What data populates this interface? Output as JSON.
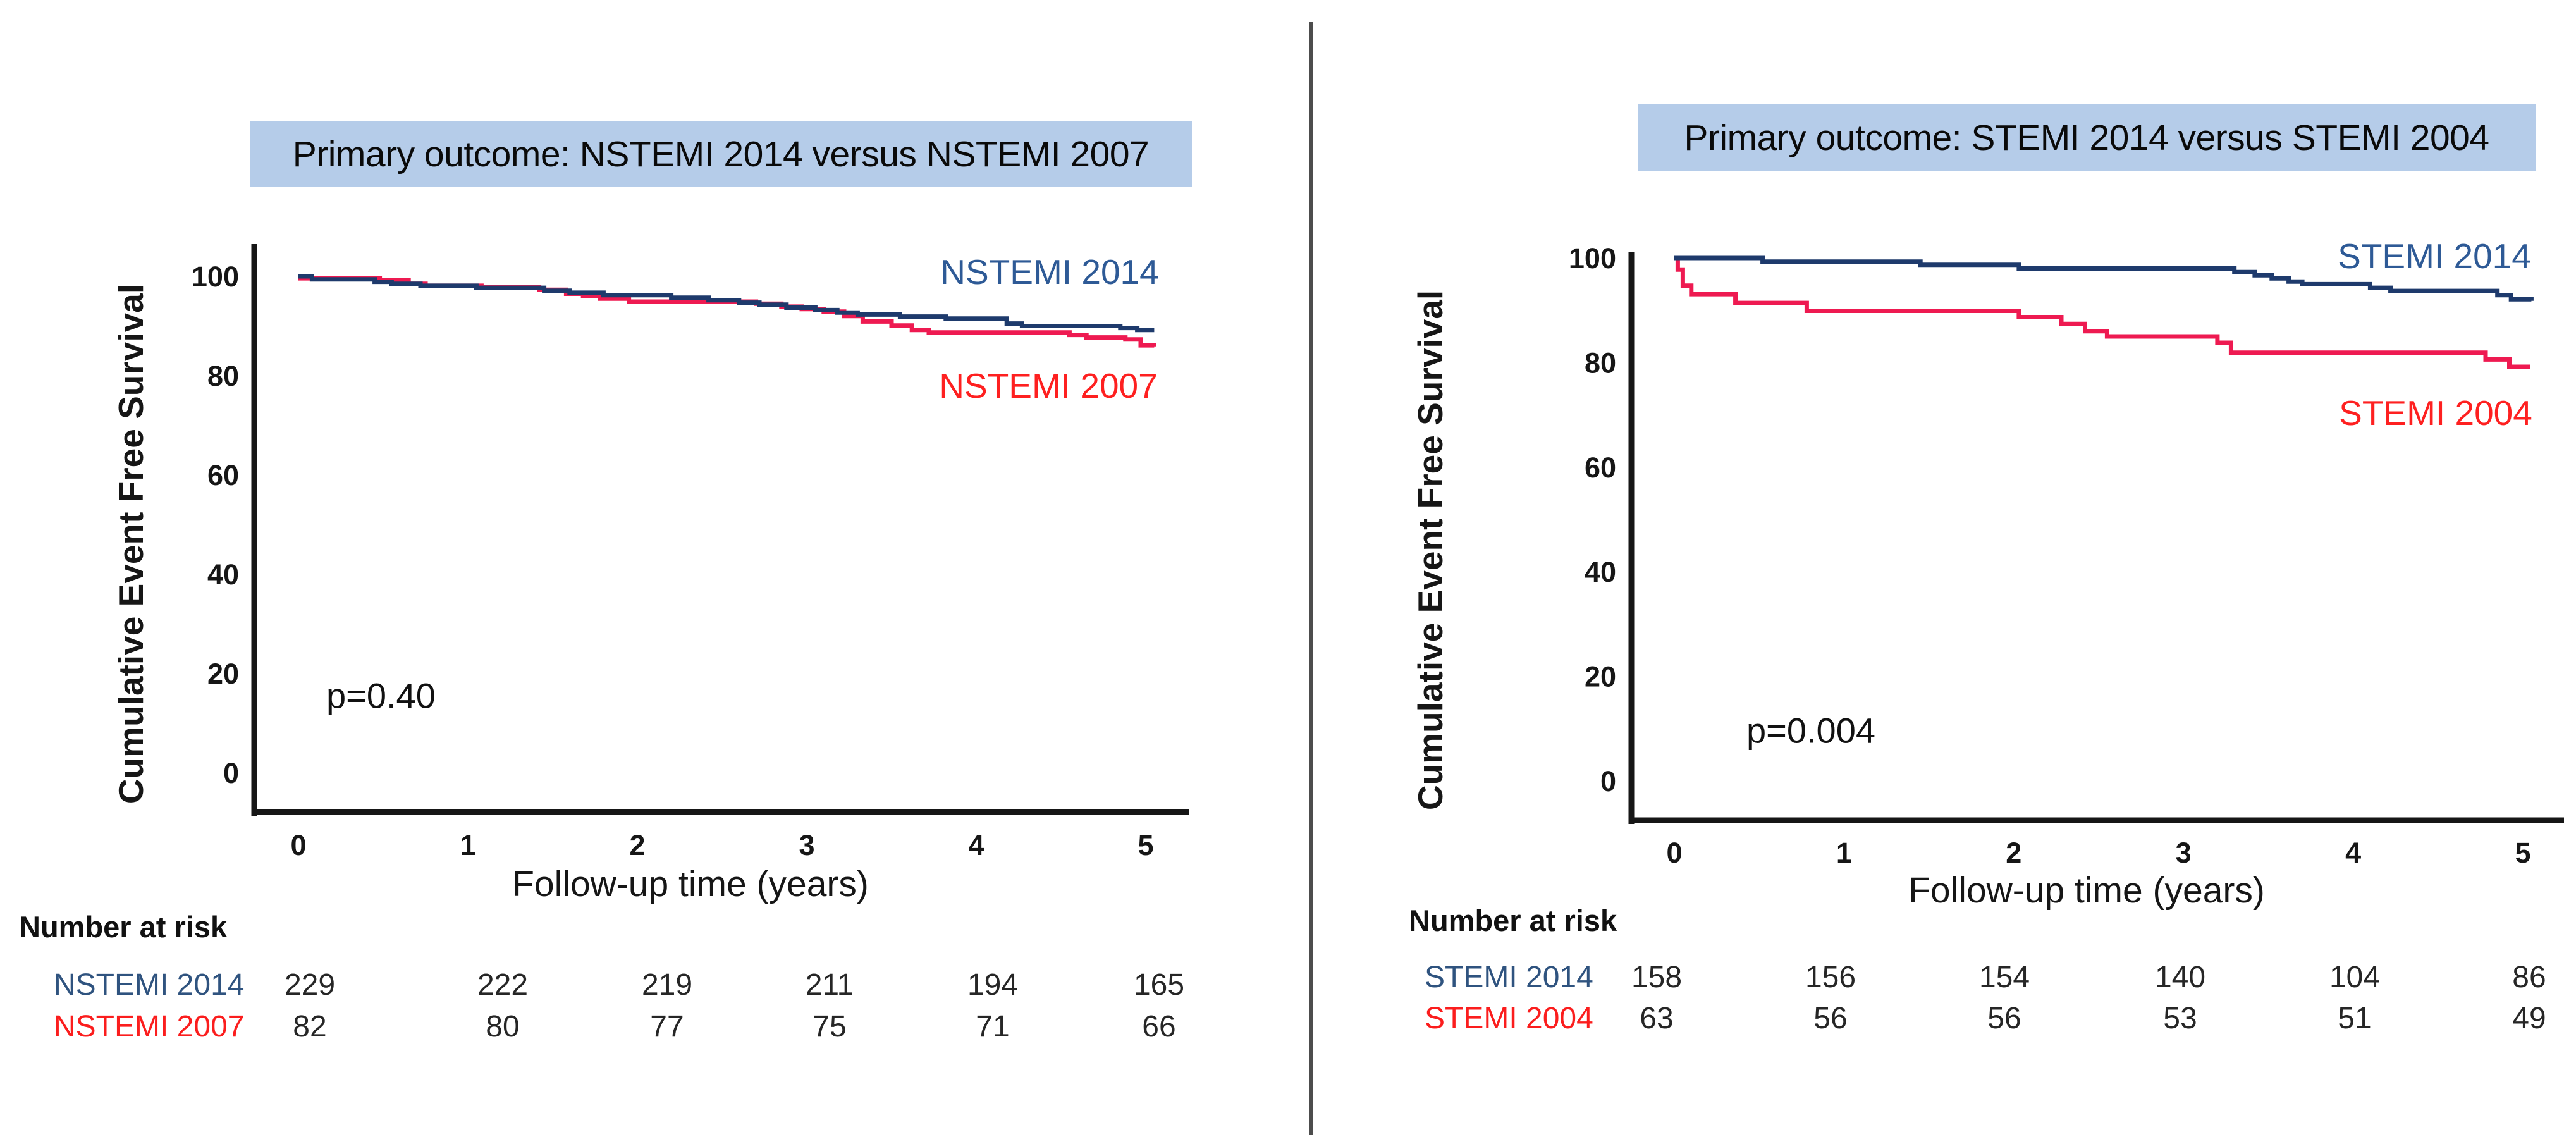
{
  "figure": {
    "divider_color": "#4d4d4d",
    "background": "#ffffff"
  },
  "chart_data": [
    {
      "type": "line",
      "subtype": "kaplan-meier-step",
      "title": "Primary outcome: NSTEMI 2014 versus NSTEMI 2007",
      "title_bg": "#b5cce9",
      "p_value": "p=0.40",
      "xlabel": "Follow-up time (years)",
      "ylabel": "Cumulative Event Free Survival",
      "x_ticks": [
        0,
        1,
        2,
        3,
        4,
        5
      ],
      "y_ticks": [
        100,
        80,
        60,
        40,
        20,
        0
      ],
      "xlim": [
        0,
        5.2
      ],
      "ylim": [
        0,
        107
      ],
      "grid": false,
      "legend_position": "inline-right",
      "series": [
        {
          "name": "NSTEMI 2014",
          "color": "#1e3a6c",
          "label_color": "#2e5a96",
          "label_pos": {
            "x": 4.42,
            "y": 100.8
          },
          "points": [
            [
              0,
              100
            ],
            [
              0.08,
              99.4
            ],
            [
              0.45,
              98.9
            ],
            [
              0.55,
              98.5
            ],
            [
              0.72,
              98.1
            ],
            [
              1.05,
              97.7
            ],
            [
              1.45,
              97.1
            ],
            [
              1.6,
              96.7
            ],
            [
              1.8,
              96.2
            ],
            [
              2.2,
              95.7
            ],
            [
              2.42,
              95.2
            ],
            [
              2.6,
              94.7
            ],
            [
              2.72,
              94.3
            ],
            [
              2.88,
              93.7
            ],
            [
              3.05,
              93.2
            ],
            [
              3.18,
              92.7
            ],
            [
              3.3,
              92.3
            ],
            [
              3.55,
              91.9
            ],
            [
              3.82,
              91.5
            ],
            [
              4.18,
              90.5
            ],
            [
              4.27,
              90.0
            ],
            [
              4.85,
              89.6
            ],
            [
              4.95,
              89.2
            ],
            [
              5.05,
              89.2
            ]
          ]
        },
        {
          "name": "NSTEMI 2007",
          "color": "#ee1a51",
          "label_color": "#fe2020",
          "label_pos": {
            "x": 4.42,
            "y": 78.0
          },
          "points": [
            [
              0,
              99.6
            ],
            [
              0.48,
              99.2
            ],
            [
              0.65,
              98.5
            ],
            [
              0.75,
              98.1
            ],
            [
              1.08,
              97.9
            ],
            [
              1.42,
              97.3
            ],
            [
              1.58,
              96.5
            ],
            [
              1.68,
              96.0
            ],
            [
              1.78,
              95.5
            ],
            [
              1.95,
              94.9
            ],
            [
              2.7,
              94.5
            ],
            [
              2.85,
              93.9
            ],
            [
              2.97,
              93.4
            ],
            [
              3.1,
              92.9
            ],
            [
              3.22,
              92.0
            ],
            [
              3.33,
              90.9
            ],
            [
              3.5,
              90.1
            ],
            [
              3.62,
              89.2
            ],
            [
              3.72,
              88.7
            ],
            [
              4.55,
              88.2
            ],
            [
              4.65,
              87.7
            ],
            [
              4.88,
              87.3
            ],
            [
              4.97,
              86.1
            ],
            [
              5.05,
              85.9
            ]
          ]
        }
      ],
      "number_at_risk": {
        "header": "Number at risk",
        "time_points": [
          0,
          1,
          2,
          3,
          4,
          5
        ],
        "rows": [
          {
            "label": "NSTEMI 2014",
            "color": "#2f537f",
            "values": [
              229,
              222,
              219,
              211,
              194,
              165
            ]
          },
          {
            "label": "NSTEMI 2007",
            "color": "#fb1d1d",
            "values": [
              82,
              80,
              77,
              75,
              71,
              66
            ]
          }
        ]
      }
    },
    {
      "type": "line",
      "subtype": "kaplan-meier-step",
      "title": "Primary outcome: STEMI 2014 versus STEMI 2004",
      "title_bg": "#b5cce9",
      "p_value": "p=0.004",
      "xlabel": "Follow-up time (years)",
      "ylabel": "Cumulative Event Free Survival",
      "x_ticks": [
        0,
        1,
        2,
        3,
        4,
        5
      ],
      "y_ticks": [
        100,
        80,
        60,
        40,
        20,
        0
      ],
      "xlim": [
        0,
        5.2
      ],
      "ylim": [
        0,
        107
      ],
      "grid": false,
      "legend_position": "inline-right",
      "series": [
        {
          "name": "STEMI 2014",
          "color": "#1e3a6c",
          "label_color": "#2e5a96",
          "label_pos": {
            "x": 4.48,
            "y": 100.4
          },
          "points": [
            [
              0,
              100
            ],
            [
              0.52,
              99.3
            ],
            [
              1.45,
              98.7
            ],
            [
              2.03,
              98.0
            ],
            [
              3.3,
              97.3
            ],
            [
              3.42,
              96.7
            ],
            [
              3.52,
              96.1
            ],
            [
              3.62,
              95.5
            ],
            [
              3.7,
              95.0
            ],
            [
              4.1,
              94.3
            ],
            [
              4.22,
              93.7
            ],
            [
              4.85,
              92.9
            ],
            [
              4.93,
              92.1
            ],
            [
              5.05,
              91.8
            ]
          ]
        },
        {
          "name": "STEMI 2004",
          "color": "#ee1a51",
          "label_color": "#fe2020",
          "label_pos": {
            "x": 4.48,
            "y": 70.4
          },
          "points": [
            [
              0,
              100
            ],
            [
              0.02,
              97.8
            ],
            [
              0.05,
              94.7
            ],
            [
              0.1,
              93.1
            ],
            [
              0.36,
              91.4
            ],
            [
              0.78,
              89.9
            ],
            [
              2.03,
              88.7
            ],
            [
              2.28,
              87.4
            ],
            [
              2.42,
              86.0
            ],
            [
              2.55,
              85.0
            ],
            [
              3.2,
              83.8
            ],
            [
              3.28,
              81.9
            ],
            [
              4.78,
              80.6
            ],
            [
              4.92,
              79.2
            ],
            [
              5.03,
              78.8
            ]
          ]
        }
      ],
      "number_at_risk": {
        "header": "Number at risk",
        "time_points": [
          0,
          1,
          2,
          3,
          4,
          5
        ],
        "rows": [
          {
            "label": "STEMI 2014",
            "color": "#2f537f",
            "values": [
              158,
              156,
              154,
              140,
              104,
              86
            ]
          },
          {
            "label": "STEMI 2004",
            "color": "#fb1d1d",
            "values": [
              63,
              56,
              56,
              53,
              51,
              49
            ]
          }
        ]
      }
    }
  ]
}
